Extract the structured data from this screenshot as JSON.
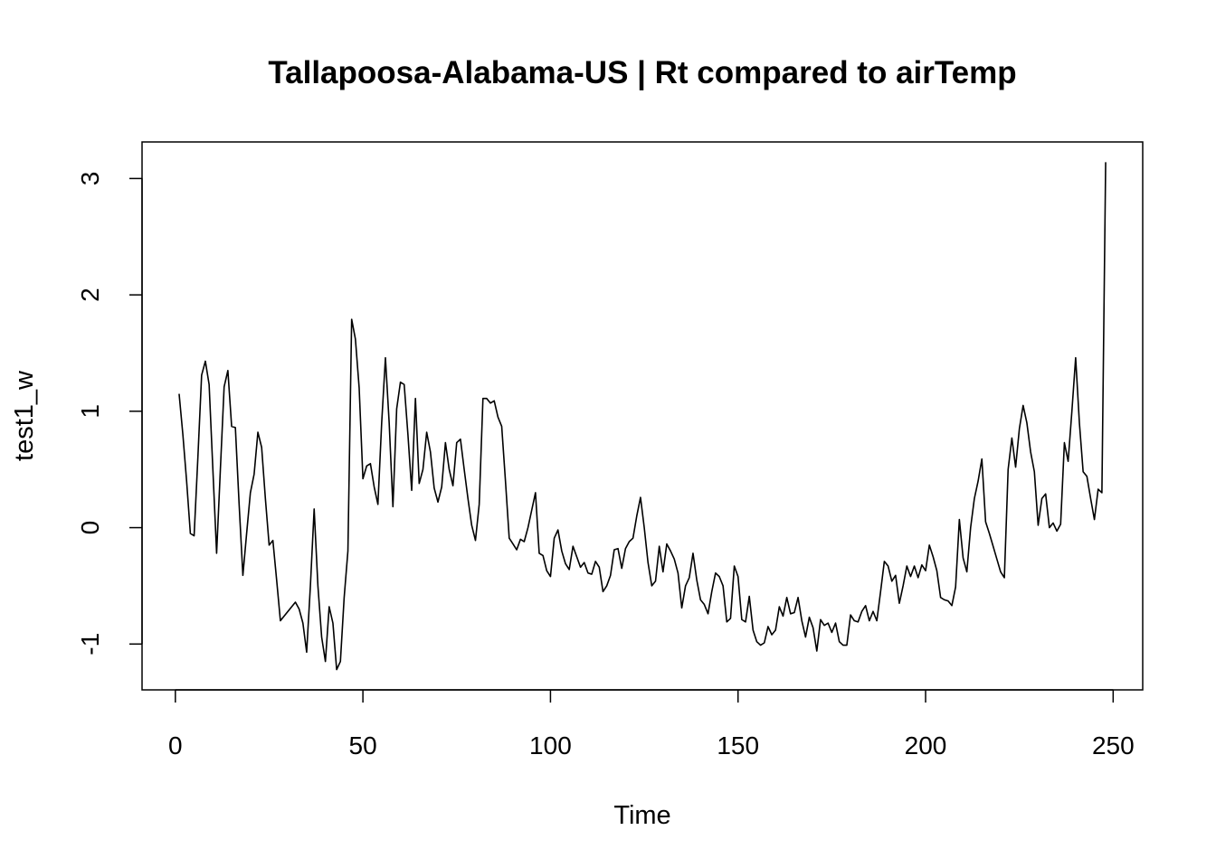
{
  "chart_data": {
    "type": "line",
    "title": "Tallapoosa-Alabama-US | Rt compared to airTemp",
    "xlabel": "Time",
    "ylabel": "test1_w",
    "xlim": [
      -8.88,
      257.88
    ],
    "ylim": [
      -1.394,
      3.314
    ],
    "xticks": [
      0,
      50,
      100,
      150,
      200,
      250
    ],
    "yticks": [
      -1,
      0,
      1,
      2,
      3
    ],
    "color": "#000000",
    "x": [
      1,
      2,
      3,
      4,
      5,
      6,
      7,
      8,
      9,
      10,
      11,
      12,
      13,
      14,
      15,
      16,
      17,
      18,
      19,
      20,
      21,
      22,
      23,
      24,
      25,
      26,
      27,
      28,
      29,
      30,
      31,
      32,
      33,
      34,
      35,
      36,
      37,
      38,
      39,
      40,
      41,
      42,
      43,
      44,
      45,
      46,
      47,
      48,
      49,
      50,
      51,
      52,
      53,
      54,
      55,
      56,
      57,
      58,
      59,
      60,
      61,
      62,
      63,
      64,
      65,
      66,
      67,
      68,
      69,
      70,
      71,
      72,
      73,
      74,
      75,
      76,
      77,
      78,
      79,
      80,
      81,
      82,
      83,
      84,
      85,
      86,
      87,
      88,
      89,
      90,
      91,
      92,
      93,
      94,
      95,
      96,
      97,
      98,
      99,
      100,
      101,
      102,
      103,
      104,
      105,
      106,
      107,
      108,
      109,
      110,
      111,
      112,
      113,
      114,
      115,
      116,
      117,
      118,
      119,
      120,
      121,
      122,
      123,
      124,
      125,
      126,
      127,
      128,
      129,
      130,
      131,
      132,
      133,
      134,
      135,
      136,
      137,
      138,
      139,
      140,
      141,
      142,
      143,
      144,
      145,
      146,
      147,
      148,
      149,
      150,
      151,
      152,
      153,
      154,
      155,
      156,
      157,
      158,
      159,
      160,
      161,
      162,
      163,
      164,
      165,
      166,
      167,
      168,
      169,
      170,
      171,
      172,
      173,
      174,
      175,
      176,
      177,
      178,
      179,
      180,
      181,
      182,
      183,
      184,
      185,
      186,
      187,
      188,
      189,
      190,
      191,
      192,
      193,
      194,
      195,
      196,
      197,
      198,
      199,
      200,
      201,
      202,
      203,
      204,
      205,
      206,
      207,
      208,
      209,
      210,
      211,
      212,
      213,
      214,
      215,
      216,
      217,
      218,
      219,
      220,
      221,
      222,
      223,
      224,
      225,
      226,
      227,
      228,
      229,
      230,
      231,
      232,
      233,
      234,
      235,
      236,
      237,
      238,
      239,
      240,
      241,
      242,
      243,
      244,
      245,
      246,
      247,
      248
    ],
    "values": [
      1.15,
      0.8,
      0.4,
      -0.05,
      -0.07,
      0.6,
      1.31,
      1.43,
      1.23,
      0.5,
      -0.22,
      0.5,
      1.21,
      1.35,
      0.87,
      0.86,
      0.2,
      -0.41,
      -0.05,
      0.3,
      0.46,
      0.82,
      0.69,
      0.25,
      -0.15,
      -0.11,
      -0.45,
      -0.8,
      -0.76,
      -0.72,
      -0.68,
      -0.64,
      -0.7,
      -0.82,
      -1.07,
      -0.5,
      0.16,
      -0.5,
      -0.94,
      -1.15,
      -0.68,
      -0.82,
      -1.22,
      -1.15,
      -0.6,
      -0.2,
      1.79,
      1.62,
      1.2,
      0.42,
      0.53,
      0.55,
      0.35,
      0.2,
      0.9,
      1.46,
      0.9,
      0.18,
      1.02,
      1.25,
      1.23,
      0.8,
      0.32,
      1.11,
      0.38,
      0.5,
      0.82,
      0.65,
      0.34,
      0.22,
      0.35,
      0.73,
      0.5,
      0.36,
      0.73,
      0.76,
      0.5,
      0.25,
      0.02,
      -0.11,
      0.2,
      1.11,
      1.11,
      1.07,
      1.09,
      0.95,
      0.87,
      0.4,
      -0.09,
      -0.14,
      -0.19,
      -0.1,
      -0.12,
      0.0,
      0.15,
      0.3,
      -0.22,
      -0.24,
      -0.37,
      -0.42,
      -0.09,
      -0.02,
      -0.2,
      -0.31,
      -0.36,
      -0.16,
      -0.25,
      -0.34,
      -0.3,
      -0.39,
      -0.4,
      -0.29,
      -0.34,
      -0.55,
      -0.5,
      -0.41,
      -0.19,
      -0.18,
      -0.35,
      -0.18,
      -0.12,
      -0.09,
      0.1,
      0.26,
      0.0,
      -0.3,
      -0.5,
      -0.46,
      -0.16,
      -0.38,
      -0.14,
      -0.2,
      -0.27,
      -0.39,
      -0.69,
      -0.5,
      -0.43,
      -0.22,
      -0.45,
      -0.62,
      -0.66,
      -0.74,
      -0.55,
      -0.39,
      -0.42,
      -0.5,
      -0.81,
      -0.78,
      -0.33,
      -0.42,
      -0.79,
      -0.81,
      -0.59,
      -0.88,
      -0.98,
      -1.01,
      -0.99,
      -0.85,
      -0.92,
      -0.88,
      -0.68,
      -0.76,
      -0.6,
      -0.74,
      -0.73,
      -0.6,
      -0.8,
      -0.94,
      -0.77,
      -0.86,
      -1.06,
      -0.79,
      -0.84,
      -0.82,
      -0.9,
      -0.82,
      -0.98,
      -1.01,
      -1.01,
      -0.75,
      -0.8,
      -0.81,
      -0.72,
      -0.67,
      -0.8,
      -0.72,
      -0.8,
      -0.55,
      -0.29,
      -0.33,
      -0.46,
      -0.41,
      -0.65,
      -0.5,
      -0.33,
      -0.42,
      -0.33,
      -0.43,
      -0.32,
      -0.37,
      -0.15,
      -0.25,
      -0.37,
      -0.6,
      -0.62,
      -0.63,
      -0.67,
      -0.51,
      0.07,
      -0.26,
      -0.38,
      0.0,
      0.25,
      0.4,
      0.59,
      0.05,
      -0.05,
      -0.16,
      -0.27,
      -0.38,
      -0.43,
      0.5,
      0.77,
      0.52,
      0.85,
      1.05,
      0.9,
      0.65,
      0.48,
      0.02,
      0.25,
      0.29,
      0.0,
      0.04,
      -0.03,
      0.03,
      0.73,
      0.57,
      1.0,
      1.46,
      0.9,
      0.48,
      0.44,
      0.25,
      0.07,
      0.33,
      0.3,
      3.14
    ]
  }
}
